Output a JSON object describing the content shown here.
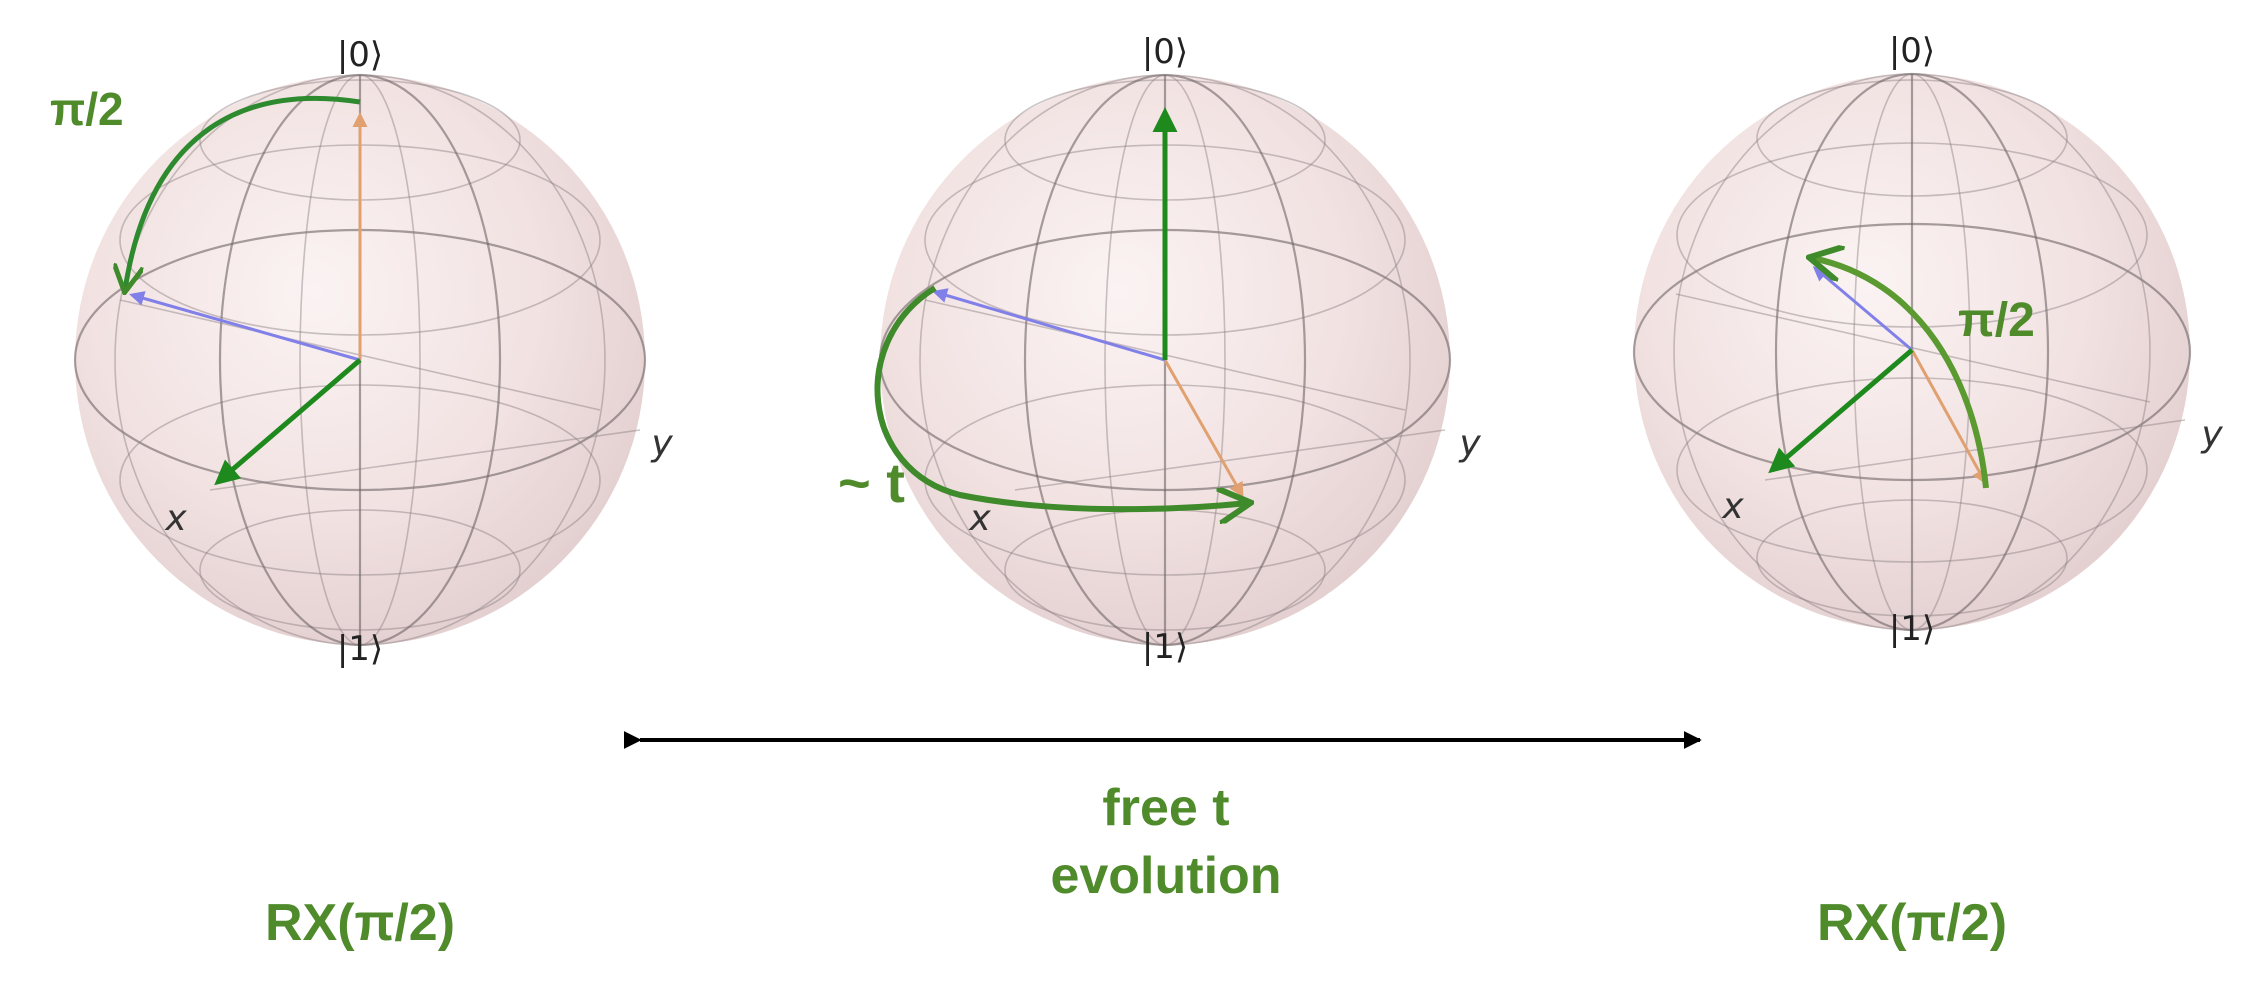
{
  "spheres": [
    {
      "pole_top": "|0⟩",
      "pole_bottom": "|1⟩",
      "axis_x": "x",
      "axis_y": "y",
      "rotation_label": "π/2",
      "gate_label": "RX(π/2)"
    },
    {
      "pole_top": "|0⟩",
      "pole_bottom": "|1⟩",
      "axis_x": "x",
      "axis_y": "y",
      "rotation_label": "~ t"
    },
    {
      "pole_top": "|0⟩",
      "pole_bottom": "|1⟩",
      "axis_x": "x",
      "axis_y": "y",
      "rotation_label": "π/2",
      "gate_label": "RX(π/2)"
    }
  ],
  "timeline": {
    "line1": "free t",
    "line2": "evolution"
  },
  "colors": {
    "sphere_fill": "#f4e6e6",
    "grid": "#8a7f80",
    "state_vector": "#1e8a1e",
    "annotation": "#4f8a2b",
    "z_axis_vector": "#e0a070",
    "y_axis_vector": "#8080e8",
    "timeline_arrow": "#000000"
  }
}
